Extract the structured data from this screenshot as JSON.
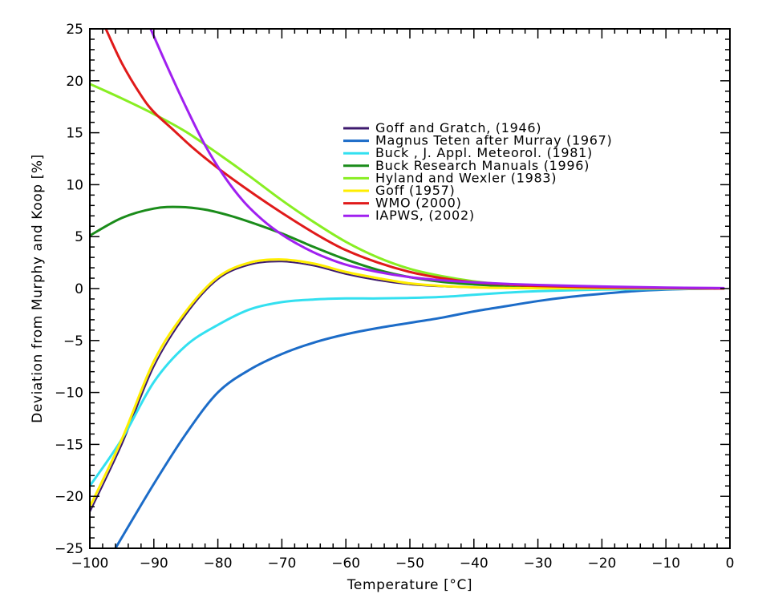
{
  "chart_data": {
    "type": "line",
    "title": "",
    "xlabel": "Temperature [°C]",
    "ylabel": "Deviation from Murphy and Koop [%]",
    "xlim": [
      -100,
      0
    ],
    "ylim": [
      -25,
      25
    ],
    "x_ticks": [
      -100,
      -90,
      -80,
      -70,
      -60,
      -50,
      -40,
      -30,
      -20,
      -10,
      0
    ],
    "y_ticks": [
      -25,
      -20,
      -15,
      -10,
      -5,
      0,
      5,
      10,
      15,
      20,
      25
    ],
    "x_tick_labels": [
      "−100",
      "−90",
      "−80",
      "−70",
      "−60",
      "−50",
      "−40",
      "−30",
      "−20",
      "−10",
      "0"
    ],
    "y_tick_labels": [
      "−25",
      "−20",
      "−15",
      "−10",
      "−5",
      "0",
      "5",
      "10",
      "15",
      "20",
      "25"
    ],
    "grid": false,
    "legend_position": "upper-center",
    "series": [
      {
        "name": "Goff and Gratch, (1946)",
        "color": "#3d1a6e",
        "width": 2,
        "x": [
          -100,
          -95,
          -90,
          -85,
          -80,
          -75,
          -70,
          -65,
          -60,
          -55,
          -50,
          -45,
          -40,
          -35,
          -30,
          -20,
          -10,
          -1
        ],
        "y": [
          -21.5,
          -15,
          -7.5,
          -2.5,
          0.9,
          2.3,
          2.6,
          2.2,
          1.4,
          0.8,
          0.4,
          0.2,
          0.1,
          0.05,
          0.03,
          0.02,
          0.01,
          0
        ]
      },
      {
        "name": "Magnus Teten after Murray (1967)",
        "color": "#1c6cc8",
        "width": 3,
        "x": [
          -96,
          -90,
          -85,
          -80,
          -75,
          -70,
          -65,
          -60,
          -55,
          -50,
          -45,
          -40,
          -35,
          -30,
          -25,
          -20,
          -15,
          -10,
          -5,
          -1
        ],
        "y": [
          -25,
          -18.8,
          -14,
          -10,
          -7.8,
          -6.3,
          -5.2,
          -4.4,
          -3.8,
          -3.3,
          -2.8,
          -2.2,
          -1.7,
          -1.2,
          -0.8,
          -0.5,
          -0.25,
          -0.1,
          -0.02,
          0
        ]
      },
      {
        "name": "Buck , J. Appl. Meteorol. (1981)",
        "color": "#33e0f0",
        "width": 3,
        "x": [
          -100,
          -95,
          -90,
          -85,
          -80,
          -75,
          -70,
          -65,
          -60,
          -55,
          -50,
          -45,
          -40,
          -35,
          -30,
          -20,
          -10,
          -1
        ],
        "y": [
          -19,
          -14.5,
          -9,
          -5.5,
          -3.5,
          -2,
          -1.3,
          -1.05,
          -0.95,
          -0.95,
          -0.9,
          -0.8,
          -0.6,
          -0.4,
          -0.25,
          -0.1,
          -0.05,
          0
        ]
      },
      {
        "name": "Buck Research Manuals (1996)",
        "color": "#1a8c1a",
        "width": 3,
        "x": [
          -100,
          -95,
          -90,
          -86,
          -82,
          -78,
          -74,
          -70,
          -65,
          -60,
          -55,
          -50,
          -45,
          -40,
          -35,
          -30,
          -20,
          -10,
          -1
        ],
        "y": [
          5.1,
          6.8,
          7.7,
          7.85,
          7.6,
          7.0,
          6.2,
          5.3,
          4.0,
          2.8,
          1.8,
          1.1,
          0.65,
          0.4,
          0.25,
          0.18,
          0.1,
          0.05,
          0.02
        ]
      },
      {
        "name": "Hyland and Wexler (1983)",
        "color": "#88ee22",
        "width": 3,
        "x": [
          -100,
          -95,
          -90,
          -85,
          -80,
          -75,
          -70,
          -65,
          -60,
          -55,
          -50,
          -45,
          -40,
          -35,
          -30,
          -20,
          -10,
          -1
        ],
        "y": [
          19.7,
          18.3,
          16.8,
          15.1,
          13.0,
          10.8,
          8.5,
          6.4,
          4.5,
          3.0,
          1.9,
          1.2,
          0.7,
          0.4,
          0.25,
          0.1,
          0.05,
          0
        ]
      },
      {
        "name": "Goff (1957)",
        "color": "#ffee00",
        "width": 3,
        "x": [
          -100,
          -95,
          -90,
          -85,
          -80,
          -75,
          -70,
          -65,
          -60,
          -55,
          -50,
          -45,
          -40,
          -35,
          -30,
          -20,
          -10,
          -1
        ],
        "y": [
          -21,
          -14.5,
          -7,
          -2.2,
          1.1,
          2.5,
          2.8,
          2.4,
          1.6,
          1.0,
          0.5,
          0.25,
          0.12,
          0.06,
          0.03,
          0.02,
          0.01,
          0
        ]
      },
      {
        "name": "WMO (2000)",
        "color": "#e01a1a",
        "width": 3,
        "x": [
          -97.5,
          -95,
          -92,
          -90,
          -87,
          -84,
          -80,
          -76,
          -72,
          -68,
          -64,
          -60,
          -55,
          -50,
          -45,
          -40,
          -35,
          -30,
          -20,
          -10,
          -1
        ],
        "y": [
          25,
          21.7,
          18.6,
          17.0,
          15.3,
          13.6,
          11.6,
          9.8,
          8.1,
          6.5,
          5.0,
          3.7,
          2.5,
          1.6,
          1.0,
          0.6,
          0.4,
          0.25,
          0.12,
          0.05,
          0
        ]
      },
      {
        "name": "IAPWS, (2002)",
        "color": "#a020f0",
        "width": 3,
        "x": [
          -90.5,
          -88,
          -85,
          -82,
          -79,
          -76,
          -73,
          -70,
          -67,
          -64,
          -60,
          -55,
          -50,
          -45,
          -40,
          -35,
          -30,
          -20,
          -10,
          -1
        ],
        "y": [
          25,
          21.5,
          17.5,
          13.8,
          10.8,
          8.4,
          6.6,
          5.2,
          4.1,
          3.2,
          2.3,
          1.6,
          1.1,
          0.8,
          0.6,
          0.45,
          0.35,
          0.2,
          0.1,
          0.05
        ]
      }
    ]
  }
}
